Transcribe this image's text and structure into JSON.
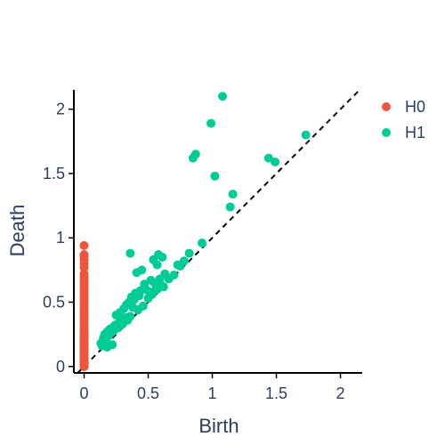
{
  "chart_data": {
    "type": "scatter",
    "xlabel": "Birth",
    "ylabel": "Death",
    "xlim": [
      -0.08,
      2.17
    ],
    "ylim": [
      -0.05,
      2.15
    ],
    "xticks": [
      0,
      0.5,
      1,
      1.5,
      2
    ],
    "yticks": [
      0,
      0.5,
      1,
      1.5,
      2
    ],
    "grid": false,
    "diagonal_line": true,
    "legend_position": "top-right",
    "series": [
      {
        "name": "H0",
        "color": "#ef553b",
        "x": [
          0,
          0,
          0,
          0,
          0,
          0,
          0,
          0,
          0,
          0,
          0,
          0,
          0,
          0,
          0,
          0,
          0,
          0,
          0,
          0,
          0,
          0,
          0,
          0,
          0,
          0,
          0,
          0,
          0,
          0,
          0,
          0,
          0,
          0,
          0,
          0,
          0,
          0,
          0,
          0,
          0,
          0,
          0,
          0,
          0,
          0,
          0,
          0,
          0,
          0,
          0,
          0,
          0,
          0,
          0,
          0,
          0,
          0,
          0,
          0,
          0,
          0,
          0,
          0,
          0,
          0,
          0,
          0
        ],
        "y": [
          0.94,
          0.87,
          0.85,
          0.83,
          0.8,
          0.77,
          0.72,
          0.7,
          0.68,
          0.66,
          0.64,
          0.62,
          0.6,
          0.58,
          0.56,
          0.54,
          0.52,
          0.5,
          0.48,
          0.46,
          0.44,
          0.42,
          0.4,
          0.38,
          0.36,
          0.34,
          0.32,
          0.3,
          0.28,
          0.27,
          0.26,
          0.25,
          0.24,
          0.23,
          0.22,
          0.21,
          0.2,
          0.19,
          0.18,
          0.17,
          0.16,
          0.15,
          0.14,
          0.13,
          0.12,
          0.11,
          0.1,
          0.09,
          0.08,
          0.07,
          0.06,
          0.055,
          0.05,
          0.045,
          0.04,
          0.035,
          0.03,
          0.025,
          0.02,
          0.015,
          0.01,
          0.0,
          0.0,
          0.0,
          0.0,
          0.0,
          0.0,
          0.0
        ]
      },
      {
        "name": "H1",
        "color": "#00cc96",
        "x": [
          1.08,
          0.99,
          0.87,
          0.85,
          1.02,
          1.16,
          1.14,
          1.44,
          1.49,
          1.73,
          0.92,
          0.82,
          0.78,
          0.73,
          0.58,
          0.61,
          0.54,
          0.57,
          0.36,
          0.45,
          0.41,
          0.63,
          0.59,
          0.52,
          0.55,
          0.47,
          0.48,
          0.44,
          0.51,
          0.57,
          0.62,
          0.4,
          0.43,
          0.37,
          0.39,
          0.35,
          0.33,
          0.38,
          0.31,
          0.28,
          0.25,
          0.33,
          0.3,
          0.28,
          0.26,
          0.24,
          0.22,
          0.2,
          0.18,
          0.16,
          0.15,
          0.17,
          0.19,
          0.21,
          0.23,
          0.27,
          0.29,
          0.34,
          0.36,
          0.42,
          0.46,
          0.5,
          0.53,
          0.56,
          0.6,
          0.66,
          0.7,
          0.75,
          0.14,
          0.13,
          0.15,
          0.17,
          0.2,
          0.24,
          0.26,
          0.3,
          0.32,
          0.18,
          0.22
        ],
        "y": [
          2.1,
          1.89,
          1.65,
          1.62,
          1.48,
          1.34,
          1.24,
          1.62,
          1.59,
          1.8,
          0.96,
          0.88,
          0.82,
          0.79,
          0.87,
          0.85,
          0.83,
          0.79,
          0.88,
          0.75,
          0.73,
          0.72,
          0.68,
          0.67,
          0.65,
          0.64,
          0.6,
          0.59,
          0.58,
          0.6,
          0.62,
          0.57,
          0.55,
          0.54,
          0.52,
          0.5,
          0.48,
          0.46,
          0.45,
          0.42,
          0.4,
          0.38,
          0.37,
          0.35,
          0.33,
          0.32,
          0.3,
          0.29,
          0.27,
          0.25,
          0.22,
          0.2,
          0.24,
          0.26,
          0.28,
          0.31,
          0.34,
          0.36,
          0.39,
          0.44,
          0.47,
          0.53,
          0.56,
          0.6,
          0.63,
          0.68,
          0.71,
          0.78,
          0.16,
          0.18,
          0.2,
          0.22,
          0.25,
          0.29,
          0.3,
          0.33,
          0.36,
          0.15,
          0.17
        ]
      }
    ]
  }
}
